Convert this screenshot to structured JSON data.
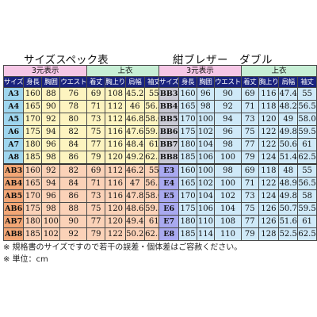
{
  "left": {
    "title": "サイズスペック表",
    "group_headers": [
      "3元表示",
      "上衣"
    ],
    "columns": [
      "サイズ",
      "身長",
      "胸囲",
      "ウエスト",
      "着丈",
      "胸上り",
      "肩幅",
      "袖丈"
    ],
    "rows": [
      {
        "code": "A3",
        "values": [
          "160",
          "88",
          "76",
          "69",
          "108",
          "45.2",
          "55"
        ]
      },
      {
        "code": "A4",
        "values": [
          "165",
          "90",
          "78",
          "71",
          "112",
          "46",
          "56.5"
        ]
      },
      {
        "code": "A5",
        "values": [
          "170",
          "92",
          "80",
          "73",
          "112",
          "46.8",
          "58.0"
        ]
      },
      {
        "code": "A6",
        "values": [
          "175",
          "94",
          "82",
          "75",
          "116",
          "47.6",
          "59.5"
        ]
      },
      {
        "code": "A7",
        "values": [
          "180",
          "96",
          "84",
          "77",
          "116",
          "48.4",
          "61"
        ]
      },
      {
        "code": "A8",
        "values": [
          "185",
          "98",
          "86",
          "79",
          "120",
          "49.2",
          "62.5"
        ]
      },
      {
        "code": "AB3",
        "values": [
          "160",
          "92",
          "82",
          "69",
          "112",
          "46.2",
          "55"
        ]
      },
      {
        "code": "AB4",
        "values": [
          "165",
          "94",
          "84",
          "71",
          "116",
          "47",
          "56.5"
        ]
      },
      {
        "code": "AB5",
        "values": [
          "170",
          "96",
          "86",
          "73",
          "116",
          "47.8",
          "58.0"
        ]
      },
      {
        "code": "AB6",
        "values": [
          "175",
          "98",
          "88",
          "75",
          "120",
          "48.6",
          "59.5"
        ]
      },
      {
        "code": "AB7",
        "values": [
          "180",
          "100",
          "90",
          "77",
          "120",
          "49.4",
          "61"
        ]
      },
      {
        "code": "AB8",
        "values": [
          "185",
          "102",
          "92",
          "79",
          "122",
          "50.2",
          "62.5"
        ]
      }
    ]
  },
  "right": {
    "title": "紺ブレザー　ダブル",
    "group_headers": [
      "3元表示",
      "上衣"
    ],
    "columns": [
      "サイズ",
      "身長",
      "胸囲",
      "ウエスト",
      "着丈",
      "胸上り",
      "肩幅",
      "袖丈"
    ],
    "rows": [
      {
        "code": "BB3",
        "values": [
          "160",
          "96",
          "90",
          "69",
          "116",
          "47.4",
          "55"
        ]
      },
      {
        "code": "BB4",
        "values": [
          "165",
          "98",
          "92",
          "71",
          "118",
          "48.2",
          "56.5"
        ]
      },
      {
        "code": "BB5",
        "values": [
          "170",
          "100",
          "94",
          "73",
          "120",
          "49",
          "58.0"
        ]
      },
      {
        "code": "BB6",
        "values": [
          "175",
          "102",
          "96",
          "75",
          "122",
          "49.8",
          "59.5"
        ]
      },
      {
        "code": "BB7",
        "values": [
          "180",
          "104",
          "98",
          "77",
          "122",
          "50.6",
          "61"
        ]
      },
      {
        "code": "BB8",
        "values": [
          "185",
          "106",
          "100",
          "79",
          "124",
          "51.4",
          "62.5"
        ]
      },
      {
        "code": "E3",
        "values": [
          "160",
          "100",
          "98",
          "69",
          "118",
          "48",
          "55"
        ]
      },
      {
        "code": "E4",
        "values": [
          "165",
          "102",
          "100",
          "71",
          "122",
          "48.9",
          "56.5"
        ]
      },
      {
        "code": "E5",
        "values": [
          "170",
          "104",
          "102",
          "73",
          "124",
          "49.8",
          "58"
        ]
      },
      {
        "code": "E6",
        "values": [
          "175",
          "106",
          "104",
          "75",
          "126",
          "50.7",
          "59.5"
        ]
      },
      {
        "code": "E7",
        "values": [
          "180",
          "110",
          "108",
          "77",
          "126",
          "51.6",
          "61"
        ]
      },
      {
        "code": "E8",
        "values": [
          "185",
          "114",
          "110",
          "79",
          "128",
          "52.5",
          "62.5"
        ]
      }
    ]
  },
  "notes": [
    "※ 規格書のサイズですので若干の誤差・個体差はご容赦ください。",
    "※ 単位：cm"
  ],
  "colors": {
    "header_navy": "#1a237e",
    "header_pink": "#f6c7e6",
    "header_green": "#c7eed5",
    "a_code_blue": "#9fd6ef",
    "a_value_yellow": "#fdf4c0",
    "ab_code_orange": "#f2a675",
    "ab_value_peach": "#fbd2b8",
    "bb_code_gray": "#c9c9d4",
    "e_code_lavender": "#a9a9f0",
    "right_value_lightblue": "#cfe9f8"
  }
}
